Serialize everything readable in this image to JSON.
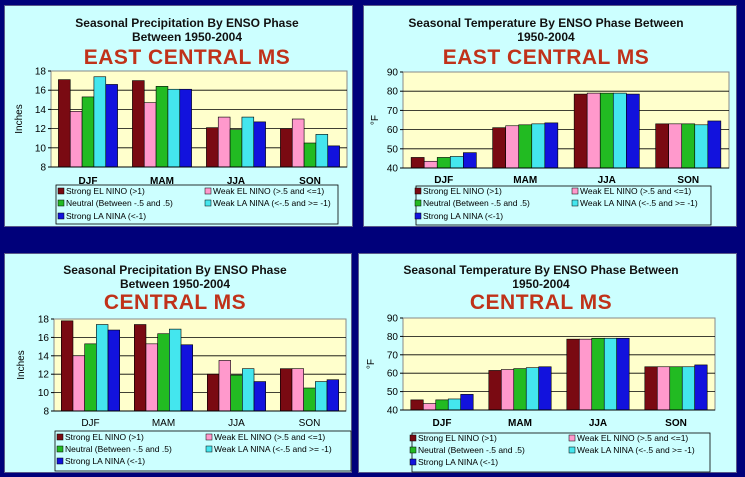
{
  "colors": {
    "panel_bg": "#ccffff",
    "plot_bg": "#ffffcc",
    "series": [
      "#7a0a12",
      "#ff99cc",
      "#22bb22",
      "#44e6ee",
      "#1212dd"
    ],
    "title_red": "#c0321a",
    "frame_blue": "#00007a"
  },
  "chart_data": [
    {
      "type": "bar",
      "title": "Seasonal Precipitation By ENSO Phase",
      "title_line2": "Between 1950-2004",
      "region": "EAST CENTRAL MS",
      "ylabel": "Inches",
      "ylim": [
        8,
        18
      ],
      "yticks": [
        "8",
        "10",
        "12",
        "14",
        "16",
        "18"
      ],
      "categories": [
        "DJF",
        "MAM",
        "JJA",
        "SON"
      ],
      "category_bold": true,
      "series": [
        {
          "name": "Strong EL NINO (>1)",
          "values": [
            17.1,
            17.0,
            12.1,
            12.0
          ]
        },
        {
          "name": "Weak EL NINO (>.5 and <=1)",
          "values": [
            13.8,
            14.7,
            13.2,
            13.0
          ]
        },
        {
          "name": "Neutral (Between -.5 and .5)",
          "values": [
            15.3,
            16.4,
            11.9,
            10.5
          ]
        },
        {
          "name": "Weak LA NINA (<-.5 and >= -1)",
          "values": [
            17.4,
            16.1,
            13.2,
            11.4
          ]
        },
        {
          "name": "Strong LA NINA (<-1)",
          "values": [
            16.6,
            16.1,
            12.7,
            10.2
          ]
        }
      ]
    },
    {
      "type": "bar",
      "title": "Seasonal Temperature By ENSO Phase Between",
      "title_line2": "1950-2004",
      "region": "EAST CENTRAL MS",
      "ylabel": "°F",
      "ylim": [
        40,
        90
      ],
      "yticks": [
        "40",
        "50",
        "60",
        "70",
        "80",
        "90"
      ],
      "categories": [
        "DJF",
        "MAM",
        "JJA",
        "SON"
      ],
      "category_bold": true,
      "series": [
        {
          "name": "Strong EL NINO (>1)",
          "values": [
            45.5,
            61.0,
            78.5,
            63.0
          ]
        },
        {
          "name": "Weak EL NINO (>.5 and <=1)",
          "values": [
            43.5,
            62.0,
            79.0,
            63.0
          ]
        },
        {
          "name": "Neutral (Between -.5 and .5)",
          "values": [
            45.5,
            62.5,
            79.0,
            63.0
          ]
        },
        {
          "name": "Weak LA NINA (<-.5 and >= -1)",
          "values": [
            46.0,
            63.0,
            79.0,
            62.5
          ]
        },
        {
          "name": "Strong LA NINA (<-1)",
          "values": [
            48.0,
            63.5,
            78.5,
            64.5
          ]
        }
      ]
    },
    {
      "type": "bar",
      "title": "Seasonal Precipitation By ENSO Phase",
      "title_line2": "Between 1950-2004",
      "region": "CENTRAL MS",
      "ylabel": "Inches",
      "ylim": [
        8,
        18
      ],
      "yticks": [
        "8",
        "10",
        "12",
        "14",
        "16",
        "18"
      ],
      "categories": [
        "DJF",
        "MAM",
        "JJA",
        "SON"
      ],
      "category_bold": false,
      "series": [
        {
          "name": "Strong EL NINO (>1)",
          "values": [
            17.8,
            17.4,
            12.0,
            12.6
          ]
        },
        {
          "name": "Weak EL NINO (>.5 and <=1)",
          "values": [
            14.0,
            15.3,
            13.5,
            12.6
          ]
        },
        {
          "name": "Neutral (Between -.5 and .5)",
          "values": [
            15.3,
            16.4,
            11.9,
            10.5
          ]
        },
        {
          "name": "Weak LA NINA (<-.5 and >= -1)",
          "values": [
            17.4,
            16.9,
            12.6,
            11.2
          ]
        },
        {
          "name": "Strong LA NINA (<-1)",
          "values": [
            16.8,
            15.2,
            11.2,
            11.4
          ]
        }
      ]
    },
    {
      "type": "bar",
      "title": "Seasonal Temperature By ENSO Phase Between",
      "title_line2": "1950-2004",
      "region": "CENTRAL MS",
      "ylabel": "°F",
      "ylim": [
        40,
        90
      ],
      "yticks": [
        "40",
        "50",
        "60",
        "70",
        "80",
        "90"
      ],
      "categories": [
        "DJF",
        "MAM",
        "JJA",
        "SON"
      ],
      "category_bold": true,
      "series": [
        {
          "name": "Strong EL NINO (>1)",
          "values": [
            45.5,
            61.5,
            78.5,
            63.5
          ]
        },
        {
          "name": "Weak EL NINO (>.5 and <=1)",
          "values": [
            43.5,
            62.0,
            78.5,
            63.5
          ]
        },
        {
          "name": "Neutral (Between -.5 and .5)",
          "values": [
            45.5,
            62.5,
            79.0,
            63.5
          ]
        },
        {
          "name": "Weak LA NINA (<-.5 and >= -1)",
          "values": [
            46.0,
            63.0,
            79.0,
            63.5
          ]
        },
        {
          "name": "Strong LA NINA (<-1)",
          "values": [
            48.5,
            63.5,
            79.0,
            64.5
          ]
        }
      ]
    }
  ]
}
